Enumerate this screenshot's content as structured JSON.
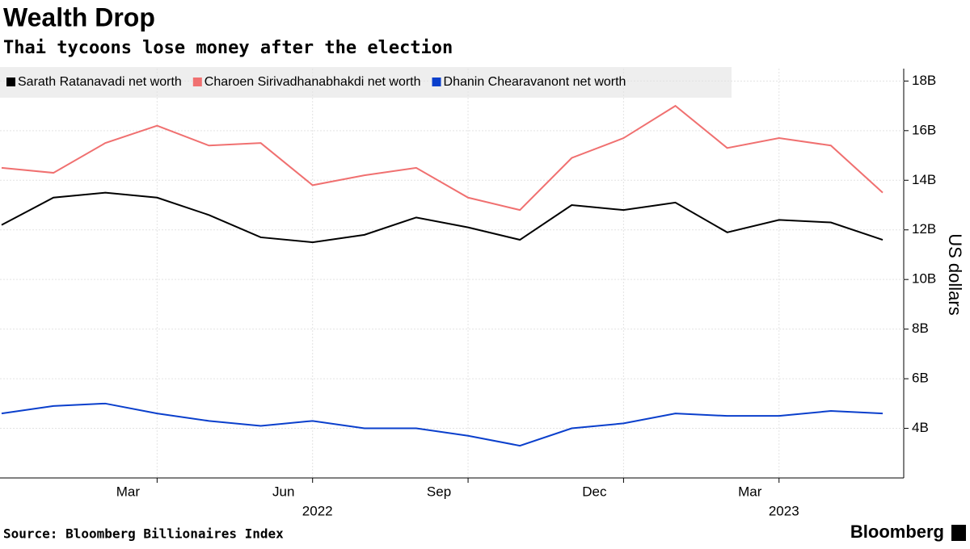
{
  "chart_data": {
    "type": "line",
    "title": "Wealth Drop",
    "subtitle": "Thai tycoons lose money after the election",
    "y_axis_label": "US dollars",
    "source": "Source: Bloomberg Billionaires Index",
    "logo": "Bloomberg",
    "x": [
      "2021-12",
      "2022-01",
      "2022-02",
      "2022-03",
      "2022-04",
      "2022-05",
      "2022-06",
      "2022-07",
      "2022-08",
      "2022-09",
      "2022-10",
      "2022-11",
      "2022-12",
      "2023-01",
      "2023-02",
      "2023-03",
      "2023-04",
      "2023-05"
    ],
    "xlim": [
      "2021-12",
      "2023-05"
    ],
    "xticks": [
      {
        "value": "2022-03",
        "label": "Mar"
      },
      {
        "value": "2022-06",
        "label": "Jun"
      },
      {
        "value": "2022-09",
        "label": "Sep"
      },
      {
        "value": "2022-12",
        "label": "Dec"
      },
      {
        "value": "2023-03",
        "label": "Mar"
      }
    ],
    "x_year_labels": [
      {
        "value": "2022-06",
        "label": "2022"
      },
      {
        "value": "2023-03",
        "label": "2023"
      }
    ],
    "ylim": [
      2,
      18.5
    ],
    "yticks": [
      {
        "value": 4,
        "label": "4B"
      },
      {
        "value": 6,
        "label": "6B"
      },
      {
        "value": 8,
        "label": "8B"
      },
      {
        "value": 10,
        "label": "10B"
      },
      {
        "value": 12,
        "label": "12B"
      },
      {
        "value": 14,
        "label": "14B"
      },
      {
        "value": 16,
        "label": "16B"
      },
      {
        "value": 18,
        "label": "18B"
      }
    ],
    "grid": true,
    "series": [
      {
        "name": "Sarath Ratanavadi net worth",
        "color": "#000000",
        "values": [
          12.2,
          13.3,
          13.5,
          13.3,
          12.6,
          11.7,
          11.5,
          11.8,
          12.5,
          12.1,
          11.6,
          13.0,
          12.8,
          13.1,
          11.9,
          12.4,
          12.3,
          11.6
        ]
      },
      {
        "name": "Charoen Sirivadhanabhakdi net worth",
        "color": "#f07070",
        "values": [
          14.5,
          14.3,
          15.5,
          16.2,
          15.4,
          15.5,
          13.8,
          14.2,
          14.5,
          13.3,
          12.8,
          14.9,
          15.7,
          17.0,
          15.3,
          15.7,
          15.4,
          13.5
        ]
      },
      {
        "name": "Dhanin Chearavanont net worth",
        "color": "#0a3fcc",
        "values": [
          4.6,
          4.9,
          5.0,
          4.6,
          4.3,
          4.1,
          4.3,
          4.0,
          4.0,
          3.7,
          3.3,
          4.0,
          4.2,
          4.6,
          4.5,
          4.5,
          4.7,
          4.6
        ]
      }
    ]
  }
}
